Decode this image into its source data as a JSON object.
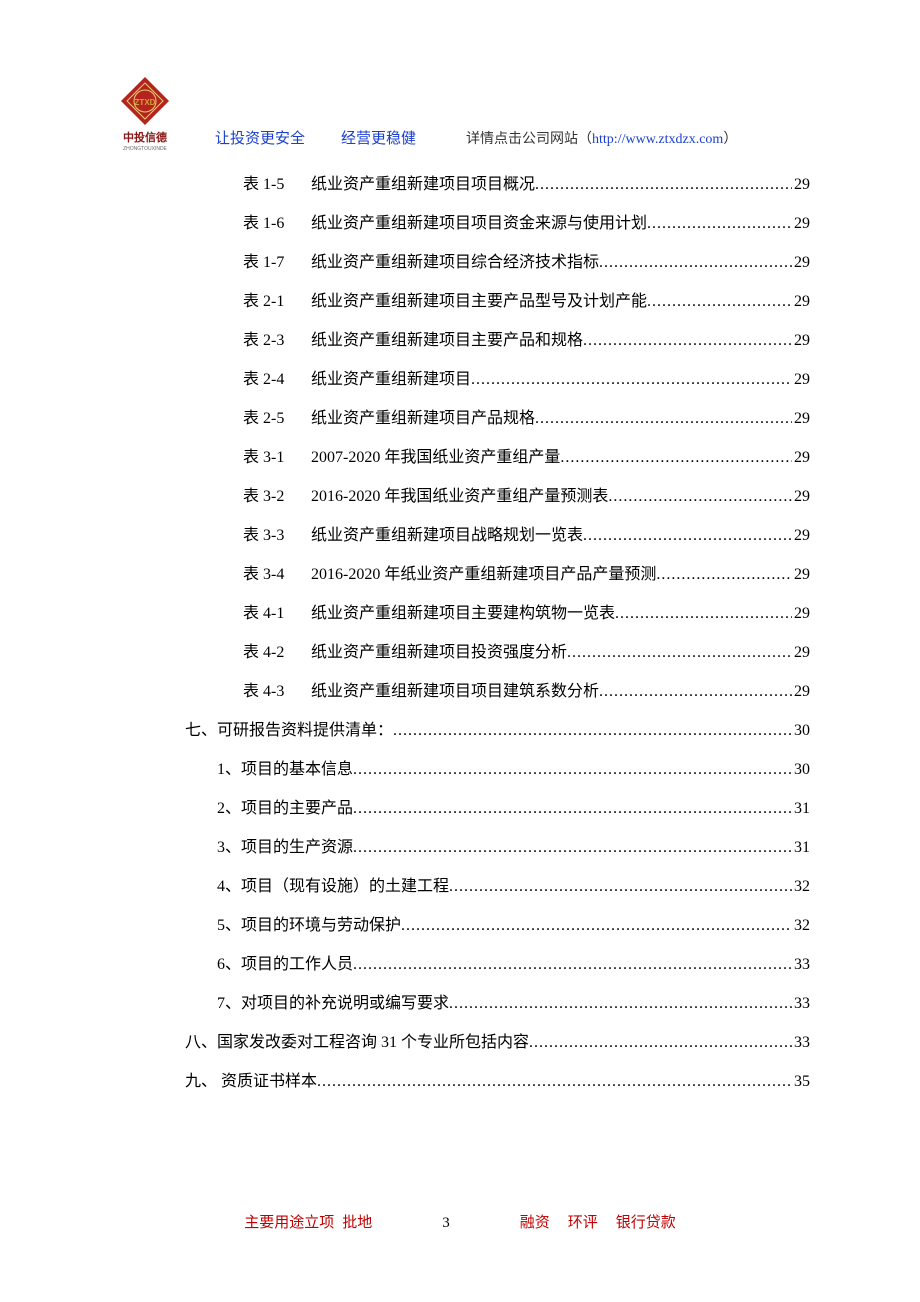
{
  "logo": {
    "cn": "中投信德",
    "en": "ZHONGTOUXINDE",
    "diamond_color": "#b5231f",
    "inner_text": "ZTXD",
    "inner_text_color": "#d4a03a"
  },
  "header": {
    "tag1": "让投资更安全",
    "tag2": "经营更稳健",
    "tag3_prefix": "详情点击公司网站",
    "tag3_url": "http://www.ztxdzx.com",
    "tag1_color": "#1a3fcf",
    "tag2_color": "#1a3fcf",
    "url_color": "#1a3fcf"
  },
  "toc": {
    "font_size": 16,
    "line_height": 39,
    "text_color": "#000000",
    "entries": [
      {
        "level": "table",
        "num": "表 1-5",
        "title": "纸业资产重组新建项目项目概况",
        "page": "29"
      },
      {
        "level": "table",
        "num": "表 1-6",
        "title": "纸业资产重组新建项目项目资金来源与使用计划",
        "page": "29"
      },
      {
        "level": "table",
        "num": "表 1-7",
        "title": "纸业资产重组新建项目综合经济技术指标",
        "page": "29"
      },
      {
        "level": "table",
        "num": "表 2-1",
        "title": "纸业资产重组新建项目主要产品型号及计划产能",
        "page": "29"
      },
      {
        "level": "table",
        "num": "表 2-3",
        "title": "纸业资产重组新建项目主要产品和规格",
        "page": "29"
      },
      {
        "level": "table",
        "num": "表 2-4",
        "title": "纸业资产重组新建项目",
        "page": "29"
      },
      {
        "level": "table",
        "num": "表 2-5",
        "title": "纸业资产重组新建项目产品规格",
        "page": "29"
      },
      {
        "level": "table",
        "num": "表 3-1",
        "title": "2007-2020 年我国纸业资产重组产量 ",
        "page": "29"
      },
      {
        "level": "table",
        "num": "表 3-2",
        "title": "2016-2020 年我国纸业资产重组产量预测表 ",
        "page": "29"
      },
      {
        "level": "table",
        "num": "表 3-3",
        "title": "纸业资产重组新建项目战略规划一览表",
        "page": "29"
      },
      {
        "level": "table",
        "num": "表 3-4",
        "title": "2016-2020 年纸业资产重组新建项目产品产量预测 ",
        "page": "29"
      },
      {
        "level": "table",
        "num": "表 4-1",
        "title": "纸业资产重组新建项目主要建构筑物一览表",
        "page": "29"
      },
      {
        "level": "table",
        "num": "表 4-2",
        "title": "纸业资产重组新建项目投资强度分析",
        "page": "29"
      },
      {
        "level": "table",
        "num": "表 4-3",
        "title": "纸业资产重组新建项目项目建筑系数分析",
        "page": "29"
      },
      {
        "level": "sec",
        "title": "七、可研报告资料提供清单：",
        "page": "30"
      },
      {
        "level": "sub",
        "title": "1、项目的基本信息 ",
        "page": "30"
      },
      {
        "level": "sub",
        "title": "2、项目的主要产品 ",
        "page": "31"
      },
      {
        "level": "sub",
        "title": "3、项目的生产资源 ",
        "page": "31"
      },
      {
        "level": "sub",
        "title": "4、项目（现有设施）的土建工程 ",
        "page": "32"
      },
      {
        "level": "sub",
        "title": "5、项目的环境与劳动保护 ",
        "page": "32"
      },
      {
        "level": "sub",
        "title": "6、项目的工作人员 ",
        "page": "33"
      },
      {
        "level": "sub",
        "title": "7、对项目的补充说明或编写要求 ",
        "page": "33"
      },
      {
        "level": "sec",
        "title": "八、国家发改委对工程咨询 31 个专业所包括内容 ",
        "page": "33"
      },
      {
        "level": "sec",
        "title": "九、  资质证书样本 ",
        "page": "35"
      }
    ]
  },
  "footer": {
    "left1": "主要用途立项",
    "left2": "批地",
    "page_num": "3",
    "right1": "融资",
    "right2": "环评",
    "right3": "银行贷款",
    "color": "#c00000"
  }
}
